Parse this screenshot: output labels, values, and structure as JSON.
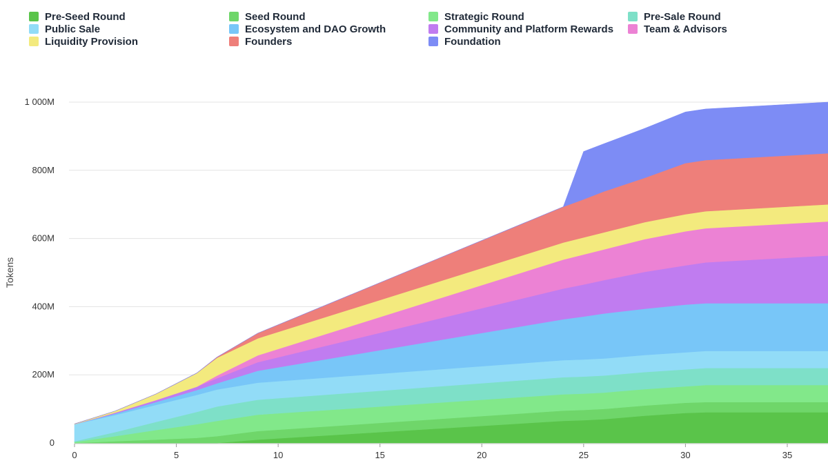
{
  "chart_data": {
    "type": "area",
    "stacked": true,
    "title": "",
    "xlabel": "",
    "ylabel": "Tokens",
    "xlim": [
      0,
      37
    ],
    "ylim": [
      0,
      1000
    ],
    "x_ticks": [
      0,
      5,
      10,
      15,
      20,
      25,
      30,
      35
    ],
    "y_ticks": [
      0,
      200,
      400,
      600,
      800,
      1000
    ],
    "y_tick_labels": [
      "0",
      "200M",
      "400M",
      "600M",
      "800M",
      "1 000M"
    ],
    "grid": "horizontal",
    "legend_position": "top",
    "x": [
      0,
      2,
      4,
      6,
      7,
      9,
      24,
      25,
      26,
      28,
      30,
      31,
      37
    ],
    "series": [
      {
        "name": "Pre-Seed Round",
        "color": "#5ac44a",
        "values": [
          0,
          0,
          0,
          0,
          0,
          10,
          65,
          67,
          70,
          80,
          88,
          90,
          90
        ]
      },
      {
        "name": "Seed Round",
        "color": "#6fd66a",
        "values": [
          0,
          5,
          10,
          15,
          20,
          25,
          30,
          30,
          30,
          30,
          30,
          30,
          30
        ]
      },
      {
        "name": "Strategic Round",
        "color": "#82e88a",
        "values": [
          3,
          15,
          28,
          40,
          45,
          48,
          48,
          48,
          48,
          48,
          48,
          50,
          50
        ]
      },
      {
        "name": "Pre-Sale Round",
        "color": "#7ee0c8",
        "values": [
          2,
          12,
          24,
          36,
          42,
          44,
          50,
          50,
          50,
          50,
          50,
          50,
          50
        ]
      },
      {
        "name": "Public Sale",
        "color": "#92dcf7",
        "values": [
          50,
          50,
          50,
          50,
          50,
          50,
          50,
          50,
          50,
          50,
          50,
          50,
          50
        ]
      },
      {
        "name": "Ecosystem and DAO Growth",
        "color": "#78c6f8",
        "values": [
          0,
          4,
          8,
          14,
          18,
          35,
          120,
          126,
          132,
          136,
          140,
          140,
          140
        ]
      },
      {
        "name": "Community and Platform Rewards",
        "color": "#c07cf0",
        "values": [
          0,
          3,
          6,
          10,
          15,
          25,
          90,
          94,
          98,
          108,
          115,
          120,
          140
        ]
      },
      {
        "name": "Team & Advisors",
        "color": "#ec82d4",
        "values": [
          0,
          0,
          0,
          0,
          8,
          20,
          85,
          88,
          90,
          96,
          100,
          100,
          100
        ]
      },
      {
        "name": "Liquidity Provision",
        "color": "#f3ea7e",
        "values": [
          1,
          5,
          18,
          40,
          52,
          50,
          50,
          50,
          50,
          50,
          50,
          50,
          50
        ]
      },
      {
        "name": "Founders",
        "color": "#ee7f7a",
        "values": [
          0,
          0,
          0,
          0,
          2,
          15,
          105,
          112,
          120,
          130,
          150,
          150,
          150
        ]
      },
      {
        "name": "Foundation",
        "color": "#7d8cf5",
        "values": [
          0,
          0,
          0,
          0,
          0,
          0,
          0,
          140,
          140,
          145,
          150,
          150,
          150
        ]
      }
    ],
    "legend_order": [
      "Pre-Seed Round",
      "Seed Round",
      "Strategic Round",
      "Pre-Sale Round",
      "Public Sale",
      "Ecosystem and DAO Growth",
      "Community and Platform Rewards",
      "Team & Advisors",
      "Liquidity Provision",
      "Founders",
      "Foundation"
    ]
  }
}
